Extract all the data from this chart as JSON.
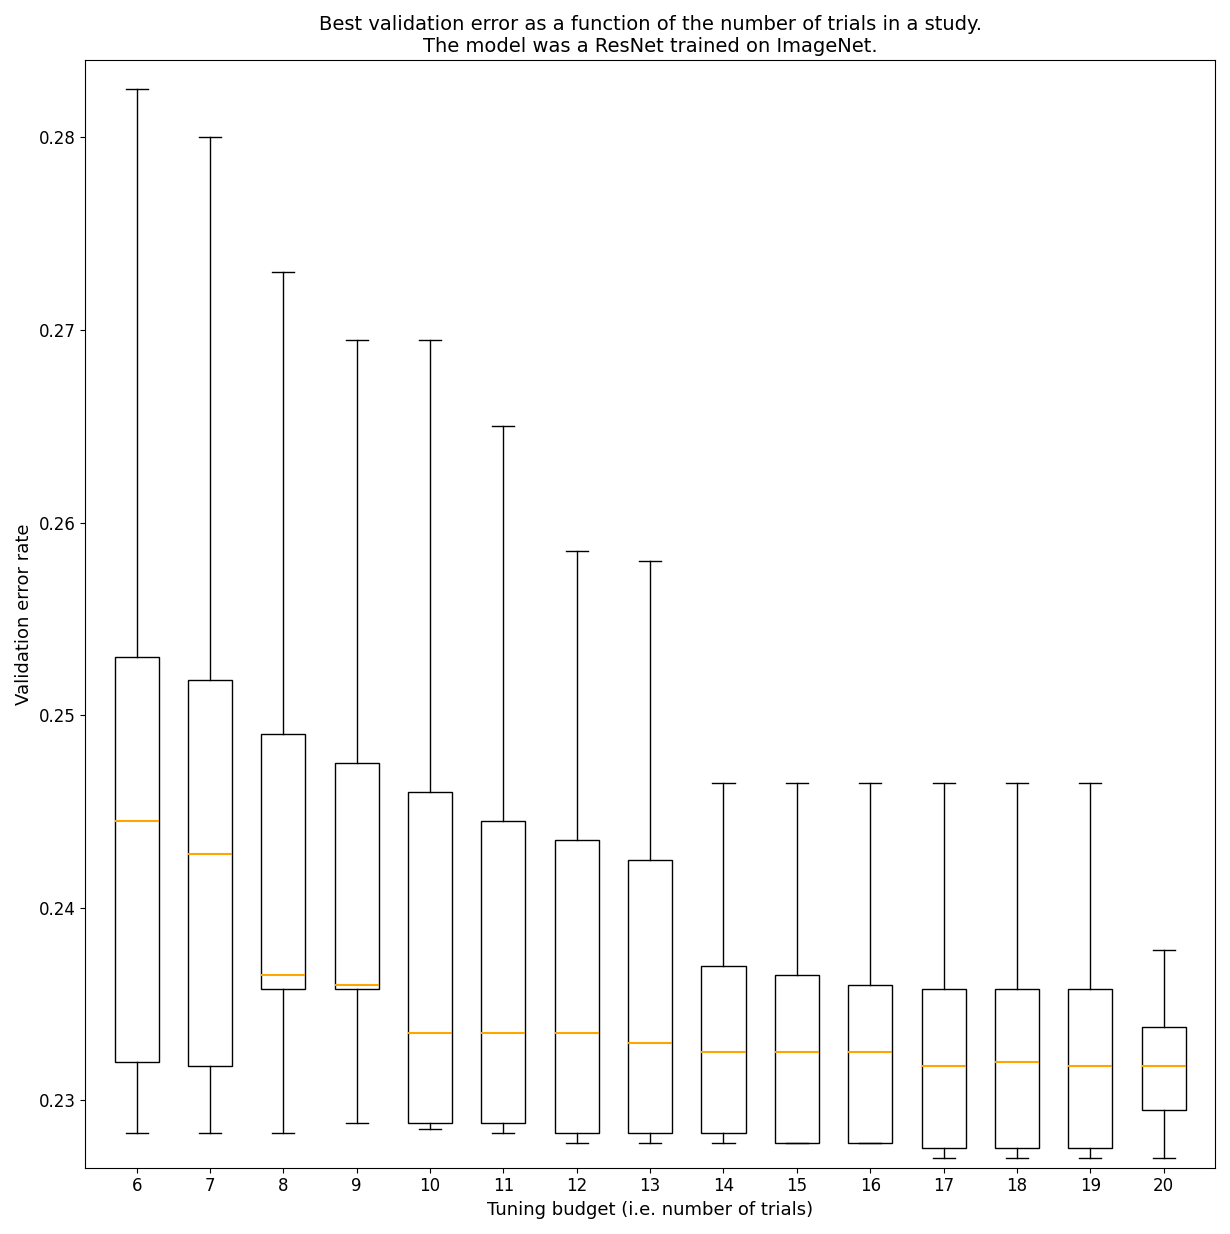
{
  "title": "Best validation error as a function of the number of trials in a study.\nThe model was a ResNet trained on ImageNet.",
  "xlabel": "Tuning budget (i.e. number of trials)",
  "ylabel": "Validation error rate",
  "trials": [
    6,
    7,
    8,
    9,
    10,
    11,
    12,
    13,
    14,
    15,
    16,
    17,
    18,
    19,
    20
  ],
  "box_data": {
    "6": {
      "whislo": 0.2283,
      "q1": 0.232,
      "med": 0.2445,
      "q3": 0.253,
      "whishi": 0.2825
    },
    "7": {
      "whislo": 0.2283,
      "q1": 0.2318,
      "med": 0.2428,
      "q3": 0.2518,
      "whishi": 0.28
    },
    "8": {
      "whislo": 0.2283,
      "q1": 0.2358,
      "med": 0.2365,
      "q3": 0.249,
      "whishi": 0.273
    },
    "9": {
      "whislo": 0.2288,
      "q1": 0.2358,
      "med": 0.236,
      "q3": 0.2475,
      "whishi": 0.2695
    },
    "10": {
      "whislo": 0.2285,
      "q1": 0.2288,
      "med": 0.2335,
      "q3": 0.246,
      "whishi": 0.2695
    },
    "11": {
      "whislo": 0.2283,
      "q1": 0.2288,
      "med": 0.2335,
      "q3": 0.2445,
      "whishi": 0.265
    },
    "12": {
      "whislo": 0.2278,
      "q1": 0.2283,
      "med": 0.2335,
      "q3": 0.2435,
      "whishi": 0.2585
    },
    "13": {
      "whislo": 0.2278,
      "q1": 0.2283,
      "med": 0.233,
      "q3": 0.2425,
      "whishi": 0.258
    },
    "14": {
      "whislo": 0.2278,
      "q1": 0.2283,
      "med": 0.2325,
      "q3": 0.237,
      "whishi": 0.2465
    },
    "15": {
      "whislo": 0.2278,
      "q1": 0.2278,
      "med": 0.2325,
      "q3": 0.2365,
      "whishi": 0.2465
    },
    "16": {
      "whislo": 0.2278,
      "q1": 0.2278,
      "med": 0.2325,
      "q3": 0.236,
      "whishi": 0.2465
    },
    "17": {
      "whislo": 0.227,
      "q1": 0.2275,
      "med": 0.2318,
      "q3": 0.2358,
      "whishi": 0.2465
    },
    "18": {
      "whislo": 0.227,
      "q1": 0.2275,
      "med": 0.232,
      "q3": 0.2358,
      "whishi": 0.2465
    },
    "19": {
      "whislo": 0.227,
      "q1": 0.2275,
      "med": 0.2318,
      "q3": 0.2358,
      "whishi": 0.2465
    },
    "20": {
      "whislo": 0.227,
      "q1": 0.2295,
      "med": 0.2318,
      "q3": 0.2338,
      "whishi": 0.2378
    }
  },
  "ylim": [
    0.2265,
    0.284
  ],
  "yticks": [
    0.23,
    0.24,
    0.25,
    0.26,
    0.27,
    0.28
  ],
  "median_color": "orange",
  "box_color": "white",
  "box_edge_color": "black",
  "whisker_color": "black",
  "cap_color": "black",
  "background_color": "white",
  "title_fontsize": 14,
  "label_fontsize": 13,
  "tick_fontsize": 12
}
